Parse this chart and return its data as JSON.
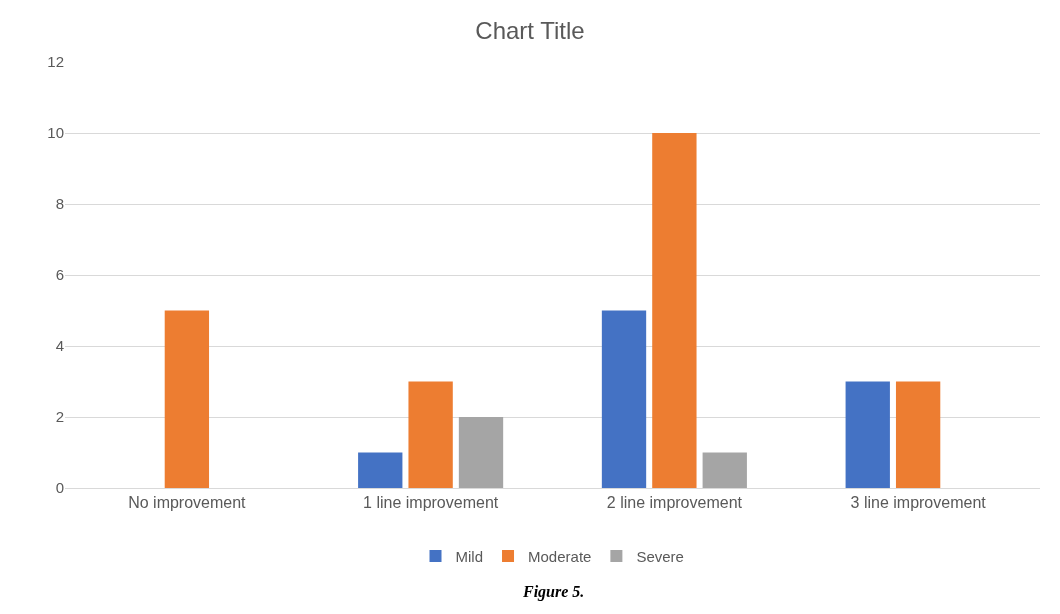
{
  "chart_data": {
    "type": "bar",
    "title": "Chart Title",
    "categories": [
      "No improvement",
      "1 line improvement",
      "2 line improvement",
      "3 line improvement"
    ],
    "series": [
      {
        "name": "Mild",
        "color": "#4472c4",
        "values": [
          0,
          1,
          5,
          3
        ]
      },
      {
        "name": "Moderate",
        "color": "#ed7d31",
        "values": [
          5,
          3,
          10,
          3
        ]
      },
      {
        "name": "Severe",
        "color": "#a5a5a5",
        "values": [
          0,
          2,
          1,
          0
        ]
      }
    ],
    "ylim": [
      0,
      12
    ],
    "yticks": [
      0,
      2,
      4,
      6,
      8,
      10,
      12
    ],
    "grid": "y",
    "legend": "bottom",
    "annotations": [
      "Figure 5."
    ]
  }
}
